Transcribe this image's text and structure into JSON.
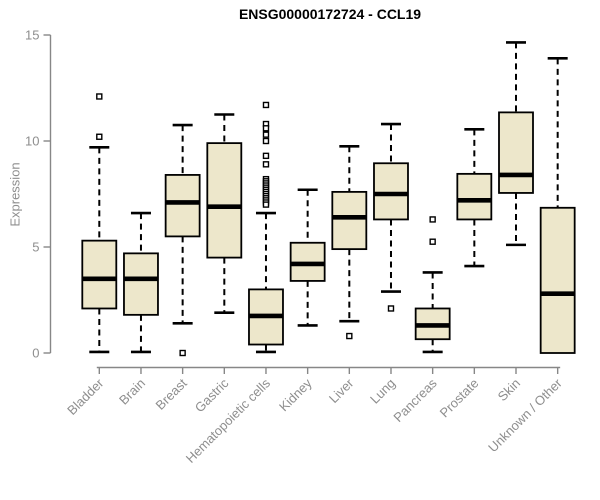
{
  "title": "ENSG00000172724 - CCL19",
  "colors": {
    "box_fill": "#EDE7CB",
    "box_stroke": "#000000",
    "median": "#000000",
    "whisker": "#000000",
    "outlier_fill": "#FFFFFF",
    "axis": "#878787",
    "axis_text": "#8E8E8E",
    "title_text": "#000000",
    "background": "#FFFFFF"
  },
  "chart_data": {
    "type": "boxplot",
    "title": "ENSG00000172724 - CCL19",
    "xlabel": "",
    "ylabel": "Expression",
    "ylim": [
      0,
      15
    ],
    "yticks": [
      0,
      5,
      10,
      15
    ],
    "grid": false,
    "categories": [
      "Bladder",
      "Brain",
      "Breast",
      "Gastric",
      "Hematopoietic cells",
      "Kidney",
      "Liver",
      "Lung",
      "Pancreas",
      "Prostate",
      "Skin",
      "Unknown / Other"
    ],
    "boxes": [
      {
        "category": "Bladder",
        "whisker_low": 0.05,
        "q1": 2.1,
        "median": 3.5,
        "q3": 5.3,
        "whisker_high": 9.7,
        "outliers": [
          10.2,
          12.1
        ]
      },
      {
        "category": "Brain",
        "whisker_low": 0.05,
        "q1": 1.8,
        "median": 3.5,
        "q3": 4.7,
        "whisker_high": 6.6,
        "outliers": []
      },
      {
        "category": "Breast",
        "whisker_low": 1.4,
        "q1": 5.5,
        "median": 7.1,
        "q3": 8.4,
        "whisker_high": 10.75,
        "outliers": [
          0.0
        ]
      },
      {
        "category": "Gastric",
        "whisker_low": 1.9,
        "q1": 4.5,
        "median": 6.9,
        "q3": 9.9,
        "whisker_high": 11.25,
        "outliers": []
      },
      {
        "category": "Hematopoietic cells",
        "whisker_low": 0.05,
        "q1": 0.4,
        "median": 1.75,
        "q3": 3.0,
        "whisker_high": 6.6,
        "outliers": [
          11.7,
          10.8,
          10.6,
          10.3,
          10.0,
          9.3,
          8.9,
          8.2,
          8.1,
          8.0,
          7.9,
          7.8,
          7.7,
          7.6,
          7.5,
          7.4,
          7.3,
          7.2,
          7.1,
          7.0
        ]
      },
      {
        "category": "Kidney",
        "whisker_low": 1.3,
        "q1": 3.4,
        "median": 4.2,
        "q3": 5.2,
        "whisker_high": 7.7,
        "outliers": []
      },
      {
        "category": "Liver",
        "whisker_low": 1.5,
        "q1": 4.9,
        "median": 6.4,
        "q3": 7.6,
        "whisker_high": 9.75,
        "outliers": [
          0.8
        ]
      },
      {
        "category": "Lung",
        "whisker_low": 2.9,
        "q1": 6.3,
        "median": 7.5,
        "q3": 8.95,
        "whisker_high": 10.8,
        "outliers": [
          2.1
        ]
      },
      {
        "category": "Pancreas",
        "whisker_low": 0.05,
        "q1": 0.65,
        "median": 1.3,
        "q3": 2.1,
        "whisker_high": 3.8,
        "outliers": [
          6.3,
          5.25
        ]
      },
      {
        "category": "Prostate",
        "whisker_low": 4.1,
        "q1": 6.3,
        "median": 7.2,
        "q3": 8.45,
        "whisker_high": 10.55,
        "outliers": []
      },
      {
        "category": "Skin",
        "whisker_low": 5.1,
        "q1": 7.55,
        "median": 8.4,
        "q3": 11.35,
        "whisker_high": 14.65,
        "outliers": []
      },
      {
        "category": "Unknown / Other",
        "whisker_low": 0.0,
        "q1": 0.0,
        "median": 2.8,
        "q3": 6.85,
        "whisker_high": 13.9,
        "outliers": []
      }
    ]
  }
}
